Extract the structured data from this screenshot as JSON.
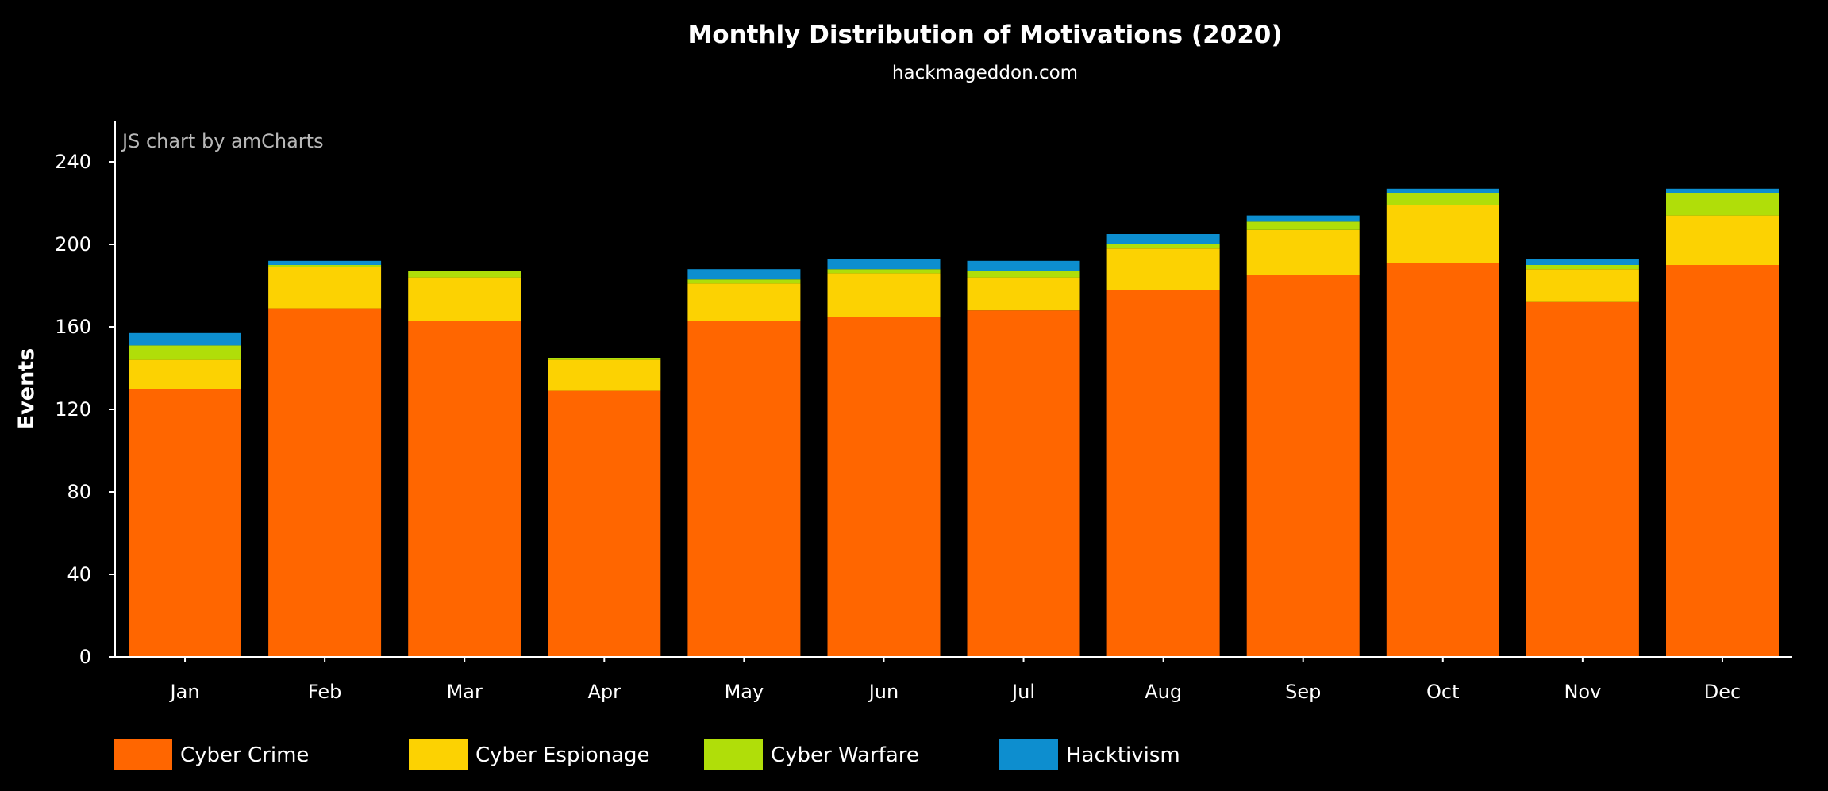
{
  "chart_data": {
    "type": "bar",
    "stacked": true,
    "title": "Monthly Distribution of Motivations (2020)",
    "subtitle": "hackmageddon.com",
    "xlabel": "",
    "ylabel": "Events",
    "credit": "JS chart by amCharts",
    "ylim": [
      0,
      260
    ],
    "yticks": [
      0,
      40,
      80,
      120,
      160,
      200,
      240
    ],
    "grid": false,
    "legend_position": "bottom",
    "categories": [
      "Jan",
      "Feb",
      "Mar",
      "Apr",
      "May",
      "Jun",
      "Jul",
      "Aug",
      "Sep",
      "Oct",
      "Nov",
      "Dec"
    ],
    "series": [
      {
        "name": "Cyber Crime",
        "color": "#ff6600",
        "values": [
          130,
          169,
          163,
          129,
          163,
          165,
          168,
          178,
          185,
          191,
          172,
          190
        ]
      },
      {
        "name": "Cyber Espionage",
        "color": "#fcd202",
        "values": [
          14,
          20,
          21,
          15,
          18,
          21,
          16,
          20,
          22,
          28,
          16,
          24
        ]
      },
      {
        "name": "Cyber Warfare",
        "color": "#b0de09",
        "values": [
          7,
          1,
          3,
          1,
          2,
          2,
          3,
          2,
          4,
          6,
          2,
          11
        ]
      },
      {
        "name": "Hacktivism",
        "color": "#0d8ecf",
        "values": [
          6,
          2,
          0,
          0,
          5,
          5,
          5,
          5,
          3,
          2,
          3,
          2
        ]
      }
    ]
  }
}
